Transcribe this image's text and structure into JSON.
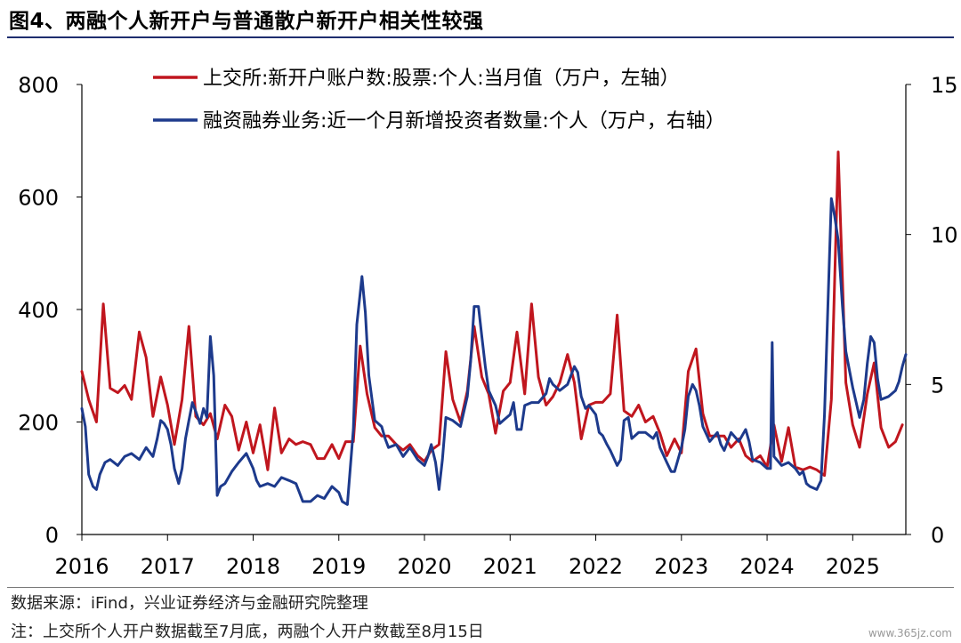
{
  "title": "图4、两融个人新开户与普通散户新开户相关性较强",
  "footer": {
    "source": "数据来源：iFind，兴业证券经济与金融研究院整理",
    "note": "注：上交所个人开户数据截至7月底，两融个人开户数截至8月15日"
  },
  "watermark": "www.365jz.com",
  "chart_data": {
    "type": "line",
    "title": "",
    "x_ticks": [
      "2016",
      "2017",
      "2018",
      "2019",
      "2020",
      "2021",
      "2022",
      "2023",
      "2024",
      "2025"
    ],
    "x_range": [
      2016.0,
      2025.62
    ],
    "y_left": {
      "range": [
        0,
        800
      ],
      "ticks": [
        0,
        200,
        400,
        600,
        800
      ]
    },
    "y_right": {
      "range": [
        0,
        15
      ],
      "ticks": [
        0,
        5,
        10,
        15
      ]
    },
    "grid": false,
    "legend_position": "top",
    "series": [
      {
        "name": "上交所:新开户账户数:股票:个人:当月值（万户，左轴）",
        "axis": "left",
        "color": "#c0161e",
        "points": [
          [
            2016.0,
            290
          ],
          [
            2016.08,
            240
          ],
          [
            2016.17,
            200
          ],
          [
            2016.25,
            410
          ],
          [
            2016.33,
            260
          ],
          [
            2016.42,
            252
          ],
          [
            2016.5,
            265
          ],
          [
            2016.58,
            240
          ],
          [
            2016.67,
            360
          ],
          [
            2016.75,
            315
          ],
          [
            2016.83,
            210
          ],
          [
            2016.92,
            280
          ],
          [
            2017.0,
            230
          ],
          [
            2017.08,
            160
          ],
          [
            2017.17,
            240
          ],
          [
            2017.25,
            370
          ],
          [
            2017.33,
            210
          ],
          [
            2017.42,
            195
          ],
          [
            2017.5,
            215
          ],
          [
            2017.58,
            170
          ],
          [
            2017.67,
            230
          ],
          [
            2017.75,
            210
          ],
          [
            2017.83,
            150
          ],
          [
            2017.92,
            200
          ],
          [
            2018.0,
            145
          ],
          [
            2018.08,
            195
          ],
          [
            2018.17,
            115
          ],
          [
            2018.25,
            225
          ],
          [
            2018.33,
            145
          ],
          [
            2018.42,
            170
          ],
          [
            2018.5,
            160
          ],
          [
            2018.58,
            165
          ],
          [
            2018.67,
            160
          ],
          [
            2018.75,
            135
          ],
          [
            2018.83,
            135
          ],
          [
            2018.92,
            160
          ],
          [
            2019.0,
            135
          ],
          [
            2019.08,
            165
          ],
          [
            2019.17,
            165
          ],
          [
            2019.25,
            335
          ],
          [
            2019.33,
            250
          ],
          [
            2019.42,
            190
          ],
          [
            2019.5,
            175
          ],
          [
            2019.58,
            175
          ],
          [
            2019.67,
            160
          ],
          [
            2019.75,
            150
          ],
          [
            2019.83,
            160
          ],
          [
            2019.92,
            140
          ],
          [
            2020.0,
            130
          ],
          [
            2020.08,
            150
          ],
          [
            2020.17,
            160
          ],
          [
            2020.25,
            325
          ],
          [
            2020.33,
            240
          ],
          [
            2020.42,
            200
          ],
          [
            2020.5,
            255
          ],
          [
            2020.58,
            370
          ],
          [
            2020.67,
            280
          ],
          [
            2020.75,
            250
          ],
          [
            2020.83,
            180
          ],
          [
            2020.92,
            255
          ],
          [
            2021.0,
            270
          ],
          [
            2021.08,
            360
          ],
          [
            2021.17,
            250
          ],
          [
            2021.25,
            410
          ],
          [
            2021.33,
            280
          ],
          [
            2021.42,
            230
          ],
          [
            2021.5,
            245
          ],
          [
            2021.58,
            270
          ],
          [
            2021.67,
            320
          ],
          [
            2021.75,
            270
          ],
          [
            2021.83,
            170
          ],
          [
            2021.92,
            230
          ],
          [
            2022.0,
            235
          ],
          [
            2022.08,
            235
          ],
          [
            2022.17,
            250
          ],
          [
            2022.25,
            390
          ],
          [
            2022.33,
            220
          ],
          [
            2022.42,
            210
          ],
          [
            2022.5,
            230
          ],
          [
            2022.58,
            200
          ],
          [
            2022.67,
            210
          ],
          [
            2022.75,
            180
          ],
          [
            2022.83,
            140
          ],
          [
            2022.92,
            170
          ],
          [
            2023.0,
            145
          ],
          [
            2023.08,
            290
          ],
          [
            2023.17,
            330
          ],
          [
            2023.25,
            215
          ],
          [
            2023.33,
            175
          ],
          [
            2023.42,
            175
          ],
          [
            2023.5,
            175
          ],
          [
            2023.58,
            155
          ],
          [
            2023.67,
            170
          ],
          [
            2023.75,
            140
          ],
          [
            2023.83,
            130
          ],
          [
            2023.92,
            140
          ],
          [
            2024.0,
            120
          ],
          [
            2024.08,
            195
          ],
          [
            2024.17,
            130
          ],
          [
            2024.25,
            190
          ],
          [
            2024.33,
            120
          ],
          [
            2024.42,
            115
          ],
          [
            2024.5,
            120
          ],
          [
            2024.58,
            115
          ],
          [
            2024.67,
            105
          ],
          [
            2024.75,
            240
          ],
          [
            2024.83,
            680
          ],
          [
            2024.92,
            270
          ],
          [
            2025.0,
            195
          ],
          [
            2025.08,
            155
          ],
          [
            2025.17,
            250
          ],
          [
            2025.25,
            305
          ],
          [
            2025.33,
            190
          ],
          [
            2025.42,
            155
          ],
          [
            2025.5,
            165
          ],
          [
            2025.58,
            195
          ]
        ]
      },
      {
        "name": "融资融券业务:近一个月新增投资者数量:个人（万户，右轴）",
        "axis": "right",
        "color": "#1d3a8c",
        "points": [
          [
            2016.0,
            4.2
          ],
          [
            2016.04,
            3.6
          ],
          [
            2016.08,
            2.0
          ],
          [
            2016.13,
            1.6
          ],
          [
            2016.17,
            1.5
          ],
          [
            2016.21,
            2.0
          ],
          [
            2016.27,
            2.4
          ],
          [
            2016.33,
            2.5
          ],
          [
            2016.42,
            2.3
          ],
          [
            2016.5,
            2.6
          ],
          [
            2016.58,
            2.7
          ],
          [
            2016.67,
            2.5
          ],
          [
            2016.75,
            2.9
          ],
          [
            2016.83,
            2.6
          ],
          [
            2016.88,
            3.2
          ],
          [
            2016.92,
            3.8
          ],
          [
            2016.96,
            3.7
          ],
          [
            2017.0,
            3.5
          ],
          [
            2017.04,
            3.0
          ],
          [
            2017.08,
            2.2
          ],
          [
            2017.13,
            1.7
          ],
          [
            2017.17,
            2.2
          ],
          [
            2017.21,
            3.2
          ],
          [
            2017.25,
            3.8
          ],
          [
            2017.29,
            4.4
          ],
          [
            2017.33,
            4.1
          ],
          [
            2017.38,
            3.7
          ],
          [
            2017.42,
            4.2
          ],
          [
            2017.46,
            3.9
          ],
          [
            2017.5,
            6.6
          ],
          [
            2017.54,
            5.3
          ],
          [
            2017.58,
            1.3
          ],
          [
            2017.62,
            1.6
          ],
          [
            2017.67,
            1.7
          ],
          [
            2017.75,
            2.1
          ],
          [
            2017.83,
            2.4
          ],
          [
            2017.92,
            2.7
          ],
          [
            2018.0,
            2.2
          ],
          [
            2018.04,
            1.8
          ],
          [
            2018.08,
            1.6
          ],
          [
            2018.17,
            1.7
          ],
          [
            2018.25,
            1.6
          ],
          [
            2018.33,
            1.9
          ],
          [
            2018.42,
            1.8
          ],
          [
            2018.5,
            1.7
          ],
          [
            2018.54,
            1.4
          ],
          [
            2018.58,
            1.1
          ],
          [
            2018.67,
            1.1
          ],
          [
            2018.75,
            1.3
          ],
          [
            2018.83,
            1.2
          ],
          [
            2018.92,
            1.6
          ],
          [
            2019.0,
            1.4
          ],
          [
            2019.04,
            1.1
          ],
          [
            2019.1,
            1.0
          ],
          [
            2019.17,
            3.5
          ],
          [
            2019.21,
            7.0
          ],
          [
            2019.27,
            8.6
          ],
          [
            2019.31,
            7.4
          ],
          [
            2019.35,
            5.3
          ],
          [
            2019.42,
            3.8
          ],
          [
            2019.5,
            3.6
          ],
          [
            2019.54,
            3.2
          ],
          [
            2019.58,
            2.9
          ],
          [
            2019.67,
            3.0
          ],
          [
            2019.75,
            2.6
          ],
          [
            2019.83,
            2.9
          ],
          [
            2019.92,
            2.5
          ],
          [
            2020.0,
            2.3
          ],
          [
            2020.04,
            2.6
          ],
          [
            2020.08,
            3.0
          ],
          [
            2020.13,
            2.4
          ],
          [
            2020.17,
            1.5
          ],
          [
            2020.21,
            2.5
          ],
          [
            2020.25,
            3.9
          ],
          [
            2020.33,
            3.8
          ],
          [
            2020.42,
            3.6
          ],
          [
            2020.5,
            4.6
          ],
          [
            2020.54,
            5.8
          ],
          [
            2020.58,
            7.6
          ],
          [
            2020.63,
            7.6
          ],
          [
            2020.67,
            6.6
          ],
          [
            2020.71,
            5.6
          ],
          [
            2020.75,
            4.8
          ],
          [
            2020.83,
            4.3
          ],
          [
            2020.88,
            3.7
          ],
          [
            2020.92,
            3.8
          ],
          [
            2021.0,
            4.0
          ],
          [
            2021.04,
            4.4
          ],
          [
            2021.08,
            3.5
          ],
          [
            2021.13,
            3.5
          ],
          [
            2021.17,
            4.3
          ],
          [
            2021.25,
            4.4
          ],
          [
            2021.33,
            4.4
          ],
          [
            2021.42,
            4.7
          ],
          [
            2021.46,
            5.2
          ],
          [
            2021.5,
            5.0
          ],
          [
            2021.58,
            4.8
          ],
          [
            2021.67,
            5.0
          ],
          [
            2021.75,
            5.6
          ],
          [
            2021.79,
            5.4
          ],
          [
            2021.83,
            4.6
          ],
          [
            2021.88,
            4.2
          ],
          [
            2021.92,
            4.3
          ],
          [
            2022.0,
            4.0
          ],
          [
            2022.04,
            3.4
          ],
          [
            2022.08,
            3.3
          ],
          [
            2022.13,
            3.0
          ],
          [
            2022.17,
            2.8
          ],
          [
            2022.25,
            2.3
          ],
          [
            2022.29,
            2.5
          ],
          [
            2022.33,
            3.8
          ],
          [
            2022.38,
            3.9
          ],
          [
            2022.42,
            3.2
          ],
          [
            2022.5,
            3.4
          ],
          [
            2022.58,
            3.4
          ],
          [
            2022.67,
            3.2
          ],
          [
            2022.71,
            3.4
          ],
          [
            2022.75,
            2.9
          ],
          [
            2022.83,
            2.4
          ],
          [
            2022.88,
            2.1
          ],
          [
            2022.92,
            2.1
          ],
          [
            2023.0,
            2.9
          ],
          [
            2023.04,
            3.5
          ],
          [
            2023.08,
            4.6
          ],
          [
            2023.13,
            5.0
          ],
          [
            2023.17,
            4.8
          ],
          [
            2023.21,
            4.3
          ],
          [
            2023.25,
            3.6
          ],
          [
            2023.33,
            3.1
          ],
          [
            2023.42,
            3.4
          ],
          [
            2023.46,
            3.0
          ],
          [
            2023.5,
            2.8
          ],
          [
            2023.58,
            3.4
          ],
          [
            2023.67,
            3.1
          ],
          [
            2023.75,
            3.5
          ],
          [
            2023.79,
            3.1
          ],
          [
            2023.83,
            2.5
          ],
          [
            2023.92,
            2.4
          ],
          [
            2024.0,
            2.2
          ],
          [
            2024.04,
            2.2
          ],
          [
            2024.06,
            6.4
          ],
          [
            2024.08,
            2.6
          ],
          [
            2024.17,
            2.3
          ],
          [
            2024.25,
            2.4
          ],
          [
            2024.33,
            2.2
          ],
          [
            2024.38,
            2.0
          ],
          [
            2024.42,
            2.1
          ],
          [
            2024.46,
            1.7
          ],
          [
            2024.5,
            1.6
          ],
          [
            2024.58,
            1.5
          ],
          [
            2024.63,
            1.8
          ],
          [
            2024.67,
            4.0
          ],
          [
            2024.71,
            7.6
          ],
          [
            2024.75,
            11.2
          ],
          [
            2024.79,
            10.6
          ],
          [
            2024.83,
            9.8
          ],
          [
            2024.88,
            7.6
          ],
          [
            2024.92,
            6.1
          ],
          [
            2025.0,
            4.9
          ],
          [
            2025.04,
            4.4
          ],
          [
            2025.08,
            3.9
          ],
          [
            2025.13,
            4.5
          ],
          [
            2025.17,
            5.7
          ],
          [
            2025.21,
            6.6
          ],
          [
            2025.25,
            6.4
          ],
          [
            2025.29,
            5.2
          ],
          [
            2025.33,
            4.5
          ],
          [
            2025.42,
            4.6
          ],
          [
            2025.5,
            4.8
          ],
          [
            2025.54,
            5.1
          ],
          [
            2025.58,
            5.6
          ],
          [
            2025.62,
            6.0
          ]
        ]
      }
    ]
  }
}
